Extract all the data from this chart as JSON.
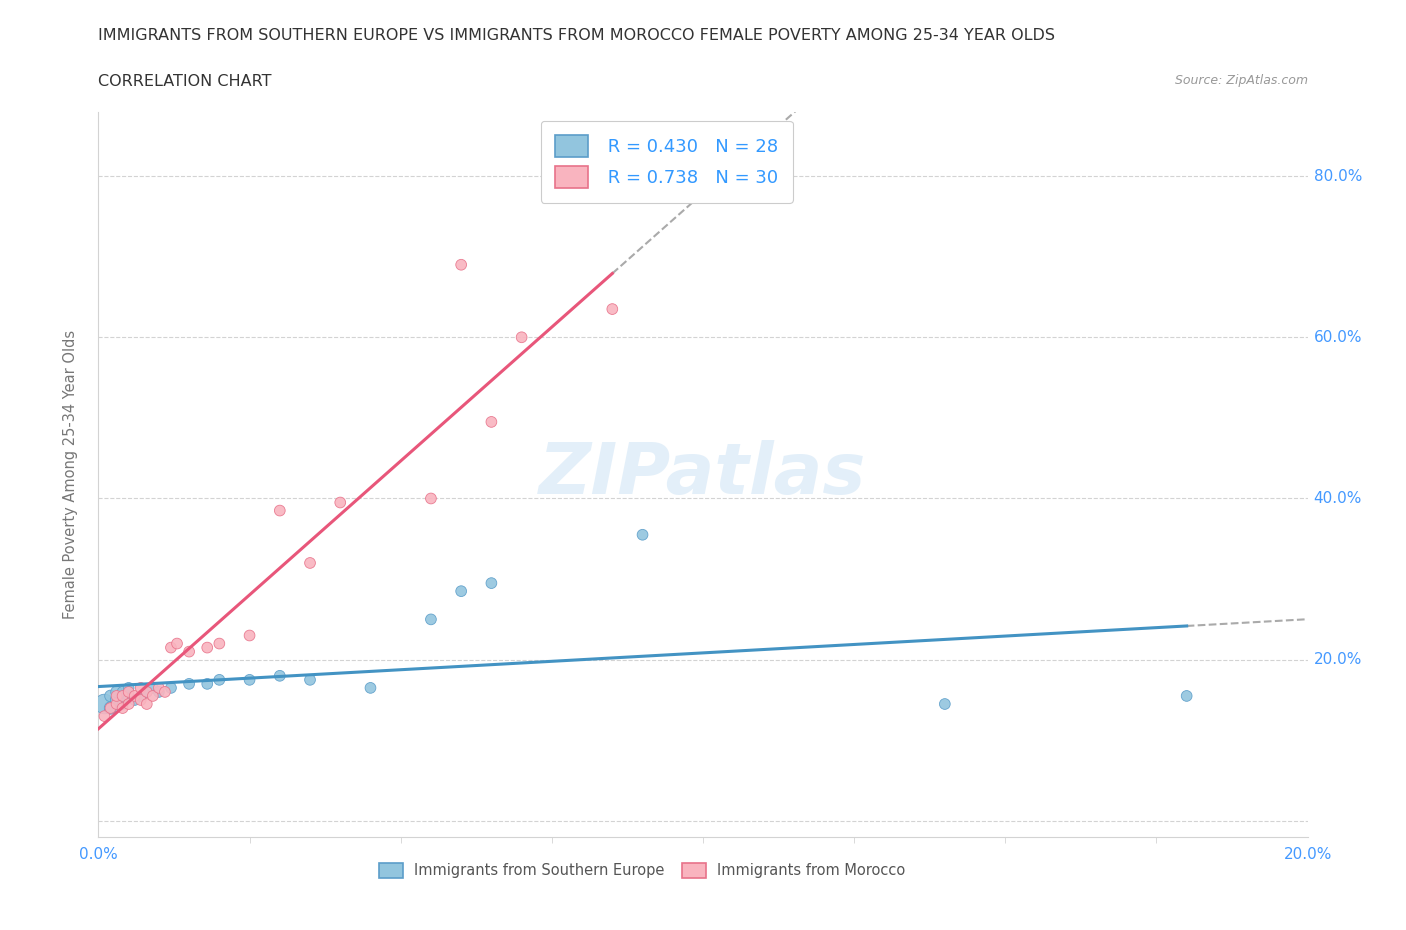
{
  "title_line1": "IMMIGRANTS FROM SOUTHERN EUROPE VS IMMIGRANTS FROM MOROCCO FEMALE POVERTY AMONG 25-34 YEAR OLDS",
  "title_line2": "CORRELATION CHART",
  "source": "Source: ZipAtlas.com",
  "ylabel": "Female Poverty Among 25-34 Year Olds",
  "xlim": [
    0.0,
    0.2
  ],
  "ylim": [
    -0.02,
    0.88
  ],
  "ytick_vals": [
    0.0,
    0.2,
    0.4,
    0.6,
    0.8
  ],
  "watermark": "ZIPatlas",
  "legend_R1": "R = 0.430",
  "legend_N1": "N = 28",
  "legend_R2": "R = 0.738",
  "legend_N2": "N = 30",
  "color_southern": "#92C5DE",
  "color_morocco": "#F9B4BF",
  "edge_southern": "#5B9DC9",
  "edge_morocco": "#E8728A",
  "trendline_color_southern": "#4393C3",
  "trendline_color_morocco": "#E8567A",
  "se_x": [
    0.001,
    0.002,
    0.002,
    0.003,
    0.003,
    0.004,
    0.004,
    0.005,
    0.005,
    0.006,
    0.007,
    0.008,
    0.009,
    0.01,
    0.012,
    0.015,
    0.018,
    0.02,
    0.025,
    0.03,
    0.035,
    0.045,
    0.055,
    0.06,
    0.065,
    0.09,
    0.14,
    0.18
  ],
  "se_y": [
    0.145,
    0.14,
    0.155,
    0.15,
    0.16,
    0.145,
    0.16,
    0.155,
    0.165,
    0.15,
    0.155,
    0.16,
    0.165,
    0.16,
    0.165,
    0.17,
    0.17,
    0.175,
    0.175,
    0.18,
    0.175,
    0.165,
    0.25,
    0.285,
    0.295,
    0.355,
    0.145,
    0.155
  ],
  "se_sizes": [
    200,
    80,
    70,
    80,
    70,
    60,
    60,
    60,
    60,
    60,
    60,
    60,
    60,
    60,
    60,
    60,
    60,
    60,
    60,
    60,
    60,
    60,
    60,
    60,
    60,
    60,
    60,
    60
  ],
  "mo_x": [
    0.001,
    0.002,
    0.003,
    0.003,
    0.004,
    0.004,
    0.005,
    0.005,
    0.006,
    0.007,
    0.007,
    0.008,
    0.008,
    0.009,
    0.01,
    0.011,
    0.012,
    0.013,
    0.015,
    0.018,
    0.02,
    0.025,
    0.03,
    0.035,
    0.04,
    0.055,
    0.06,
    0.065,
    0.07,
    0.085
  ],
  "mo_y": [
    0.13,
    0.14,
    0.145,
    0.155,
    0.14,
    0.155,
    0.145,
    0.16,
    0.155,
    0.15,
    0.165,
    0.145,
    0.16,
    0.155,
    0.165,
    0.16,
    0.215,
    0.22,
    0.21,
    0.215,
    0.22,
    0.23,
    0.385,
    0.32,
    0.395,
    0.4,
    0.69,
    0.495,
    0.6,
    0.635
  ],
  "mo_sizes": [
    60,
    60,
    60,
    60,
    60,
    60,
    60,
    60,
    60,
    60,
    60,
    60,
    60,
    60,
    60,
    60,
    60,
    60,
    60,
    60,
    60,
    60,
    60,
    60,
    60,
    60,
    60,
    60,
    60,
    60
  ]
}
